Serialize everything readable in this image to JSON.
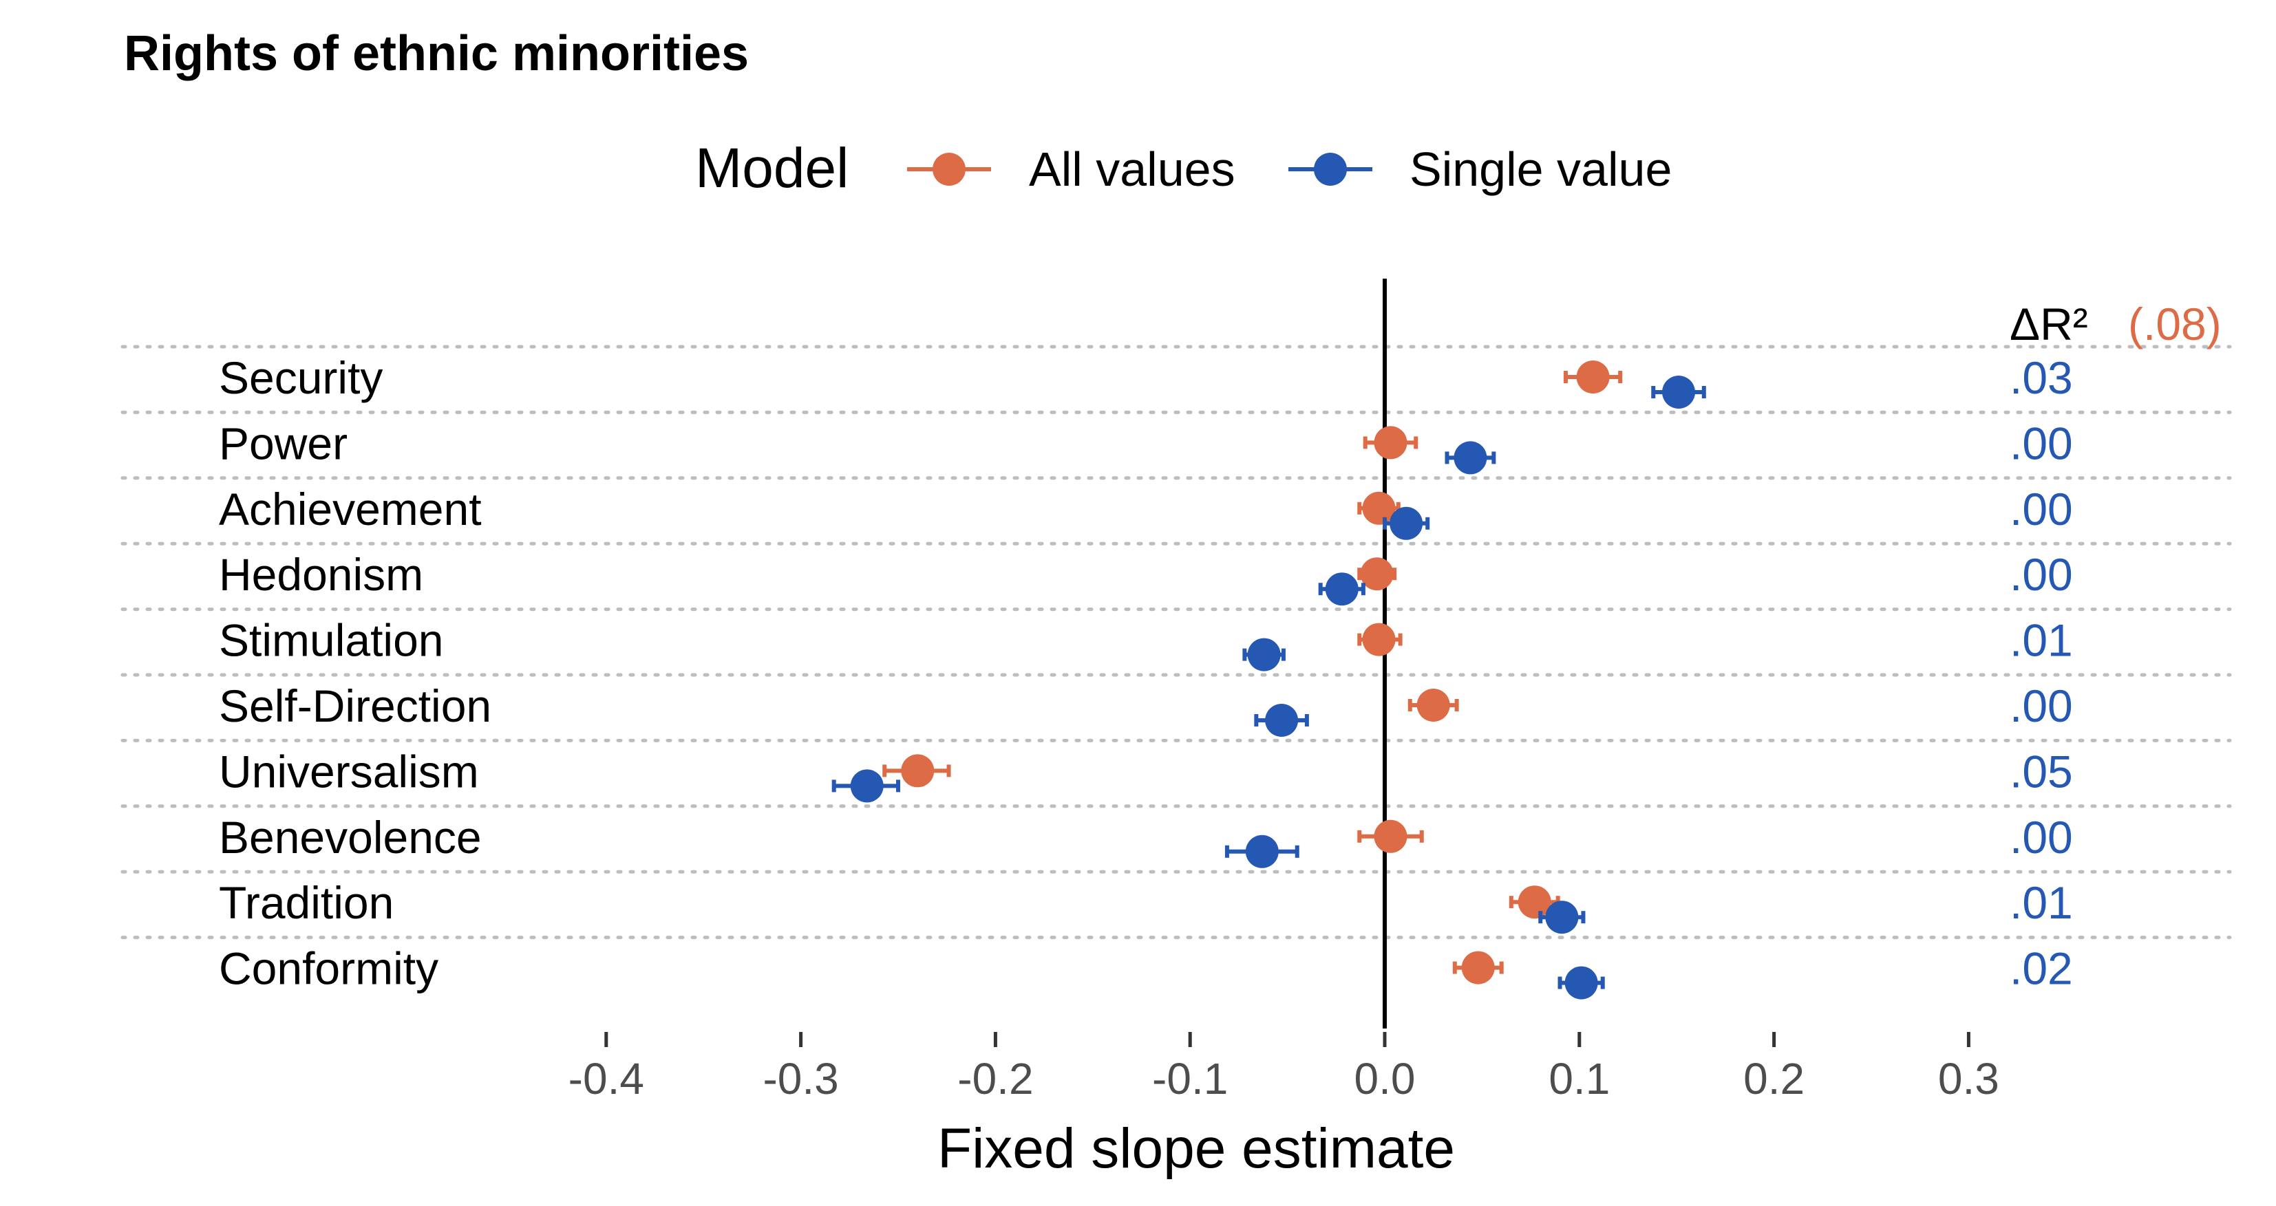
{
  "chart_data": {
    "type": "scatter",
    "subtype": "dot-and-whisker",
    "title": "Rights of ethnic minorities",
    "xlabel": "Fixed slope estimate",
    "ylabel": "",
    "xlim": [
      -0.4,
      0.3
    ],
    "x_ticks": [
      -0.4,
      -0.3,
      -0.2,
      -0.1,
      0.0,
      0.1,
      0.2,
      0.3
    ],
    "x_tick_labels": [
      "-0.4",
      "-0.3",
      "-0.2",
      "-0.1",
      "0.0",
      "0.1",
      "0.2",
      "0.3"
    ],
    "reference_line": 0.0,
    "grid": "horizontal dotted lines between categories",
    "legend": {
      "title": "Model",
      "placement": "top",
      "entries": [
        {
          "label": "All values",
          "color": "#dd6b45"
        },
        {
          "label": "Single value",
          "color": "#2458b2"
        }
      ]
    },
    "categories": [
      "Security",
      "Power",
      "Achievement",
      "Hedonism",
      "Stimulation",
      "Self-Direction",
      "Universalism",
      "Benevolence",
      "Tradition",
      "Conformity"
    ],
    "series": [
      {
        "name": "All values",
        "color": "#dd6b45",
        "estimates": [
          0.107,
          0.003,
          -0.003,
          -0.004,
          -0.003,
          0.025,
          -0.24,
          0.003,
          0.077,
          0.048
        ],
        "lower": [
          0.093,
          -0.01,
          -0.013,
          -0.013,
          -0.013,
          0.013,
          -0.257,
          -0.013,
          0.065,
          0.036
        ],
        "upper": [
          0.121,
          0.016,
          0.007,
          0.005,
          0.008,
          0.037,
          -0.224,
          0.019,
          0.089,
          0.06
        ]
      },
      {
        "name": "Single value",
        "color": "#2458b2",
        "estimates": [
          0.151,
          0.044,
          0.011,
          -0.022,
          -0.062,
          -0.053,
          -0.266,
          -0.063,
          0.091,
          0.101
        ],
        "lower": [
          0.138,
          0.032,
          0.0,
          -0.033,
          -0.072,
          -0.066,
          -0.283,
          -0.081,
          0.08,
          0.09
        ],
        "upper": [
          0.164,
          0.056,
          0.022,
          -0.011,
          -0.052,
          -0.04,
          -0.25,
          -0.045,
          0.102,
          0.112
        ]
      }
    ],
    "delta_r2": {
      "header": "ΔR²",
      "overall": "(.08)",
      "overall_color": "#dd6b45",
      "values": [
        ".03",
        ".00",
        ".00",
        ".00",
        ".01",
        ".00",
        ".05",
        ".00",
        ".01",
        ".02"
      ],
      "values_color": "#2458b2"
    }
  }
}
